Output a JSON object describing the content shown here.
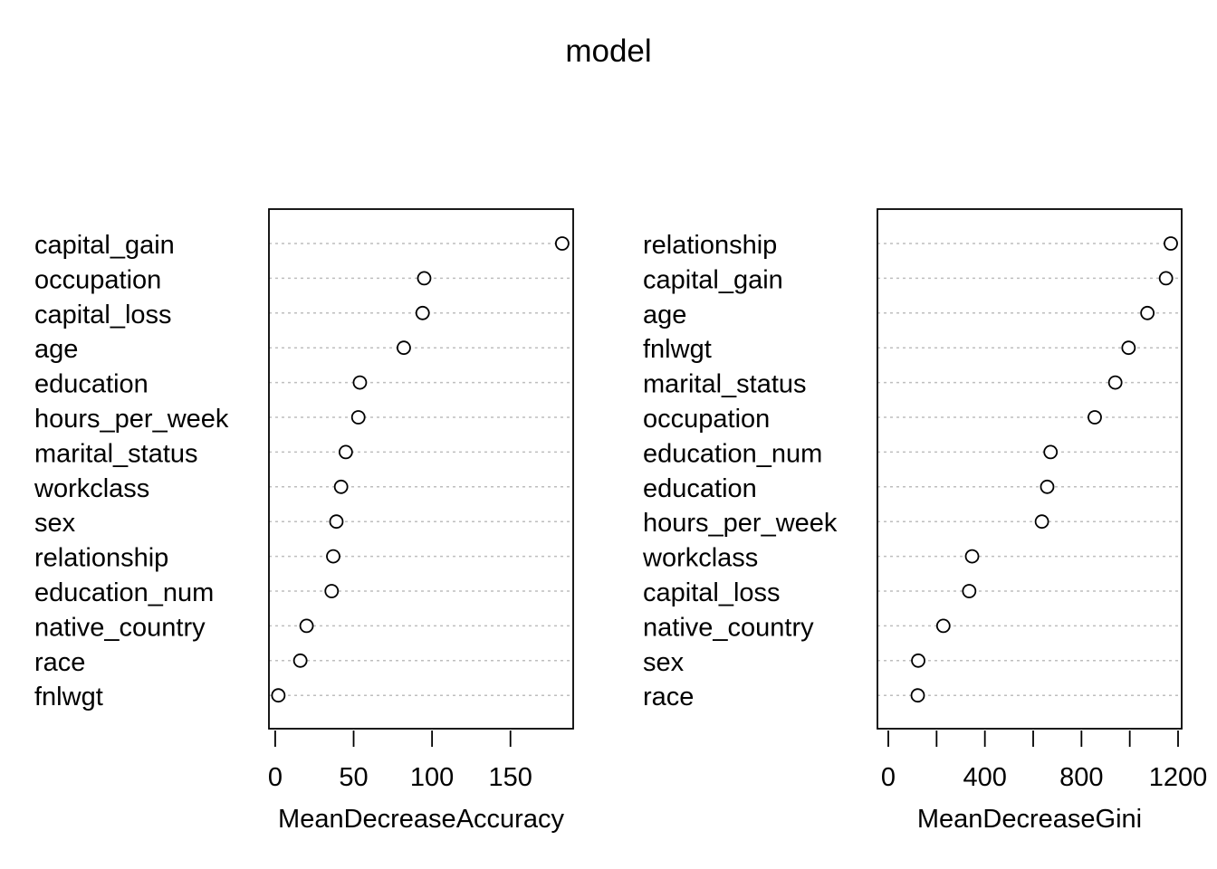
{
  "title": "model",
  "chart_data": [
    {
      "type": "scatter",
      "xlabel": "MeanDecreaseAccuracy",
      "xlim": [
        -4,
        190
      ],
      "xticks": [
        0,
        50,
        100,
        150
      ],
      "grid": "horizontal dotted",
      "categories": [
        "capital_gain",
        "occupation",
        "capital_loss",
        "age",
        "education",
        "hours_per_week",
        "marital_status",
        "workclass",
        "sex",
        "relationship",
        "education_num",
        "native_country",
        "race",
        "fnlwgt"
      ],
      "values": [
        183,
        95,
        94,
        82,
        54,
        53,
        45,
        42,
        39,
        37,
        36,
        20,
        16,
        2
      ]
    },
    {
      "type": "scatter",
      "xlabel": "MeanDecreaseGini",
      "xlim": [
        -45,
        1215
      ],
      "xticks": [
        0,
        200,
        400,
        600,
        800,
        1000,
        1200
      ],
      "xtick_labels": [
        "0",
        "",
        "400",
        "",
        "800",
        "",
        "1200"
      ],
      "grid": "horizontal dotted",
      "categories": [
        "relationship",
        "capital_gain",
        "age",
        "fnlwgt",
        "marital_status",
        "occupation",
        "education_num",
        "education",
        "hours_per_week",
        "workclass",
        "capital_loss",
        "native_country",
        "sex",
        "race"
      ],
      "values": [
        1170,
        1150,
        1073,
        995,
        940,
        855,
        672,
        658,
        636,
        347,
        335,
        228,
        124,
        122
      ]
    }
  ]
}
